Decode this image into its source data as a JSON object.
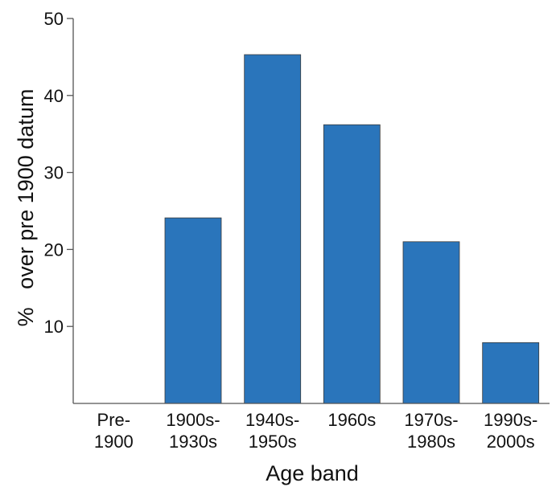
{
  "chart_data": {
    "type": "bar",
    "categories": [
      "Pre-\n1900",
      "1900s-\n1930s",
      "1940s-\n1950s",
      "1960s",
      "1970s-\n1980s",
      "1990s-\n2000s"
    ],
    "values": [
      0,
      24.1,
      45.3,
      36.2,
      21.0,
      7.9
    ],
    "title": "",
    "xlabel": "Age band",
    "ylabel": "%   over pre 1900 datum",
    "ylim": [
      0,
      50
    ],
    "yticks": [
      10,
      20,
      30,
      40,
      50
    ],
    "grid": false,
    "legend": "none",
    "bar_color": "#2a75bb",
    "bar_edge_color": "#3a3a3a",
    "axis_color": "#555555"
  }
}
